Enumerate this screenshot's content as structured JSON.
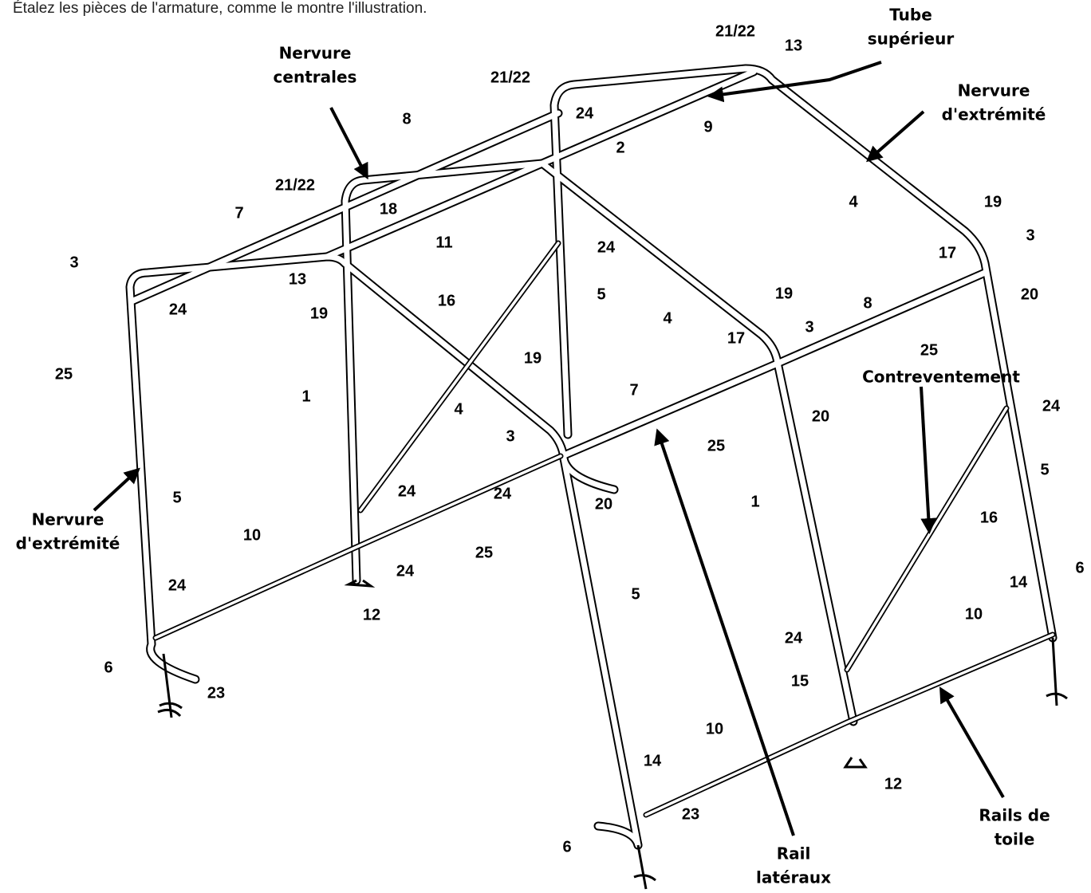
{
  "instruction": "Étalez les pièces de l'armature, comme le montre l'illustration.",
  "callouts": [
    {
      "lines": [
        "Nervure",
        "centrales"
      ]
    },
    {
      "lines": [
        "Tube",
        "supérieur"
      ]
    },
    {
      "lines": [
        "Nervure",
        "d'extrémité"
      ]
    },
    {
      "lines": [
        "Contreventement"
      ]
    },
    {
      "lines": [
        "Nervure",
        "d'extrémité"
      ]
    },
    {
      "lines": [
        "Rails de",
        "toile"
      ]
    },
    {
      "lines": [
        "Rail",
        "latéraux"
      ]
    }
  ],
  "part_numbers": [
    "21/22",
    "13",
    "21/22",
    "8",
    "24",
    "9",
    "2",
    "21/22",
    "18",
    "11",
    "7",
    "3",
    "13",
    "24",
    "19",
    "25",
    "16",
    "24",
    "5",
    "4",
    "19",
    "3",
    "17",
    "20",
    "8",
    "19",
    "3",
    "17",
    "4",
    "25",
    "1",
    "19",
    "7",
    "4",
    "3",
    "20",
    "25",
    "24",
    "5",
    "5",
    "24",
    "24",
    "20",
    "1",
    "16",
    "10",
    "25",
    "24",
    "12",
    "5",
    "24",
    "14",
    "6",
    "10",
    "6",
    "23",
    "24",
    "15",
    "10",
    "12",
    "14",
    "23",
    "6"
  ]
}
